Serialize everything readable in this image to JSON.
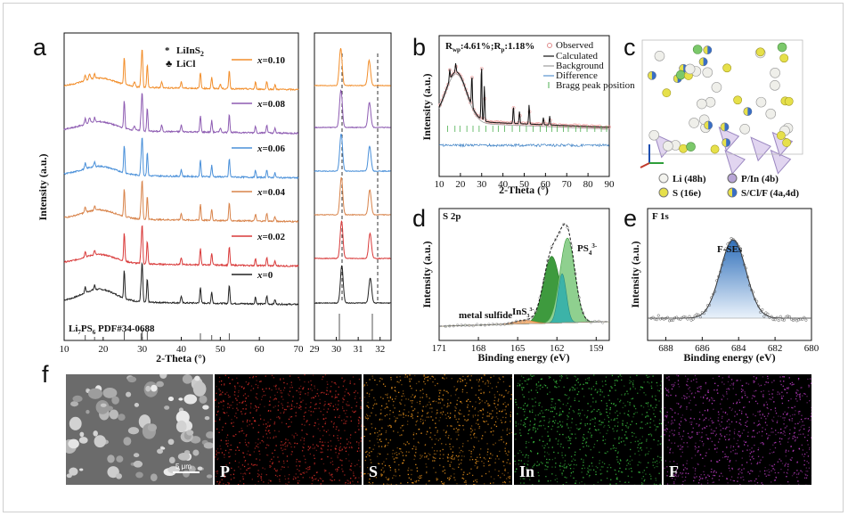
{
  "panels": {
    "a": "a",
    "b": "b",
    "c": "c",
    "d": "d",
    "e": "e",
    "f": "f"
  },
  "panel_a": {
    "xlabel": "2-Theta (°)",
    "ylabel": "Intensity (a.u.)",
    "xticks": [
      "10",
      "20",
      "30",
      "40",
      "50",
      "60",
      "70"
    ],
    "legend": [
      {
        "sym": "*",
        "text": "LiInS",
        "sub": "2",
        "color": "#2e6fb2"
      },
      {
        "sym": "♣",
        "text": "LiCl",
        "sub": "",
        "color": "#d62728"
      }
    ],
    "series": [
      {
        "label_prefix": "x",
        "label_value": "=0.10",
        "color": "#f28e2b",
        "order": 5
      },
      {
        "label_prefix": "x",
        "label_value": "=0.08",
        "color": "#8e5cb2",
        "order": 4
      },
      {
        "label_prefix": "x",
        "label_value": "=0.06",
        "color": "#4a90d9",
        "order": 3
      },
      {
        "label_prefix": "x",
        "label_value": "=0.04",
        "color": "#d8834a",
        "order": 2
      },
      {
        "label_prefix": "x",
        "label_value": "=0.02",
        "color": "#d93a3a",
        "order": 1
      },
      {
        "label_prefix": "x",
        "label_value": "=0",
        "color": "#222222",
        "order": 0
      }
    ],
    "reference_label": "Li",
    "reference_sub1": "7",
    "reference_mid": "PS",
    "reference_sub2": "6",
    "reference_tail": " PDF#34-0688"
  },
  "panel_a_zoom": {
    "xticks": [
      "29",
      "30",
      "31",
      "32"
    ]
  },
  "panel_b": {
    "annotation": "R",
    "annotation_sub1": "wp",
    "annotation_mid": ":4.61%;R",
    "annotation_sub2": "p",
    "annotation_tail": ":1.18%",
    "xlabel": "2-Theta (°)",
    "ylabel": "Intensity (a.u.)",
    "xticks": [
      "10",
      "20",
      "30",
      "40",
      "50",
      "60",
      "70",
      "80",
      "90"
    ],
    "legend": [
      "Observed",
      "Calculated",
      "Background",
      "Difference",
      "Bragg peak position"
    ]
  },
  "panel_c": {
    "legend": [
      "Li (48h)",
      "P/In (4b)",
      "S (16e)",
      "S/Cl/F (4a,4d)"
    ]
  },
  "panel_d": {
    "title": "S 2p",
    "xlabel": "Binding energy (eV)",
    "ylabel": "Intensity (a.u.)",
    "xticks": [
      "171",
      "168",
      "165",
      "162",
      "159"
    ],
    "peak_ps4": "PS",
    "peak_ps4_sup": "3-",
    "peak_ps4_sub": "4",
    "peak_ins3": "InS",
    "peak_ins3_sup": "3-",
    "peak_ins3_sub": "3",
    "metal": "metal sulfide"
  },
  "panel_e": {
    "title": "F 1s",
    "xlabel": "Binding energy (eV)",
    "ylabel": "Intensity (a.u.)",
    "xticks": [
      "688",
      "686",
      "684",
      "682",
      "680"
    ],
    "peak": "F-SEs"
  },
  "panel_f": {
    "scale": "5 μm",
    "maps": [
      {
        "label": "P",
        "color": "#e0302a"
      },
      {
        "label": "S",
        "color": "#f59a1f"
      },
      {
        "label": "In",
        "color": "#3cc843"
      },
      {
        "label": "F",
        "color": "#c13ec9"
      }
    ]
  }
}
